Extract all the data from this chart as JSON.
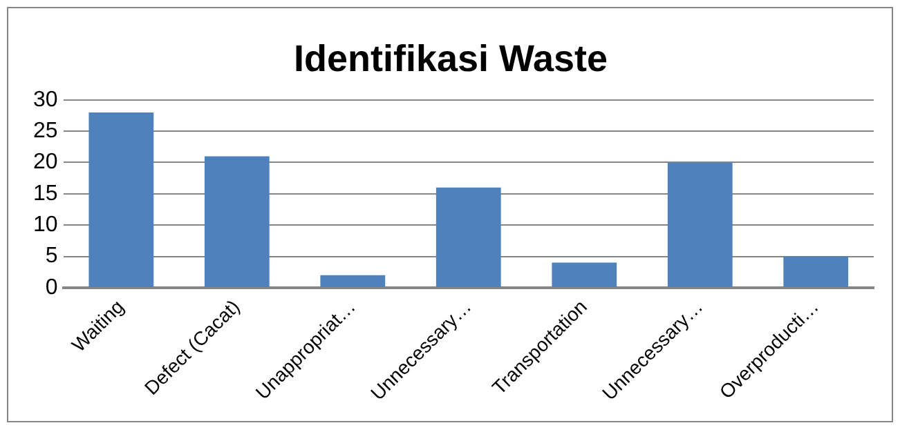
{
  "chart_data": {
    "type": "bar",
    "title": "Identifikasi Waste",
    "categories": [
      "Waiting",
      "Defect (Cacat)",
      "Unappropriat…",
      "Unnecessary…",
      "Transportation",
      "Unnecessary…",
      "Overproducti…"
    ],
    "values": [
      28,
      21,
      2,
      16,
      4,
      20,
      5
    ],
    "color": "#4f81bd",
    "ylim": [
      0,
      30
    ],
    "yticks": [
      0,
      5,
      10,
      15,
      20,
      25,
      30
    ],
    "grid": "y",
    "legend": false
  }
}
